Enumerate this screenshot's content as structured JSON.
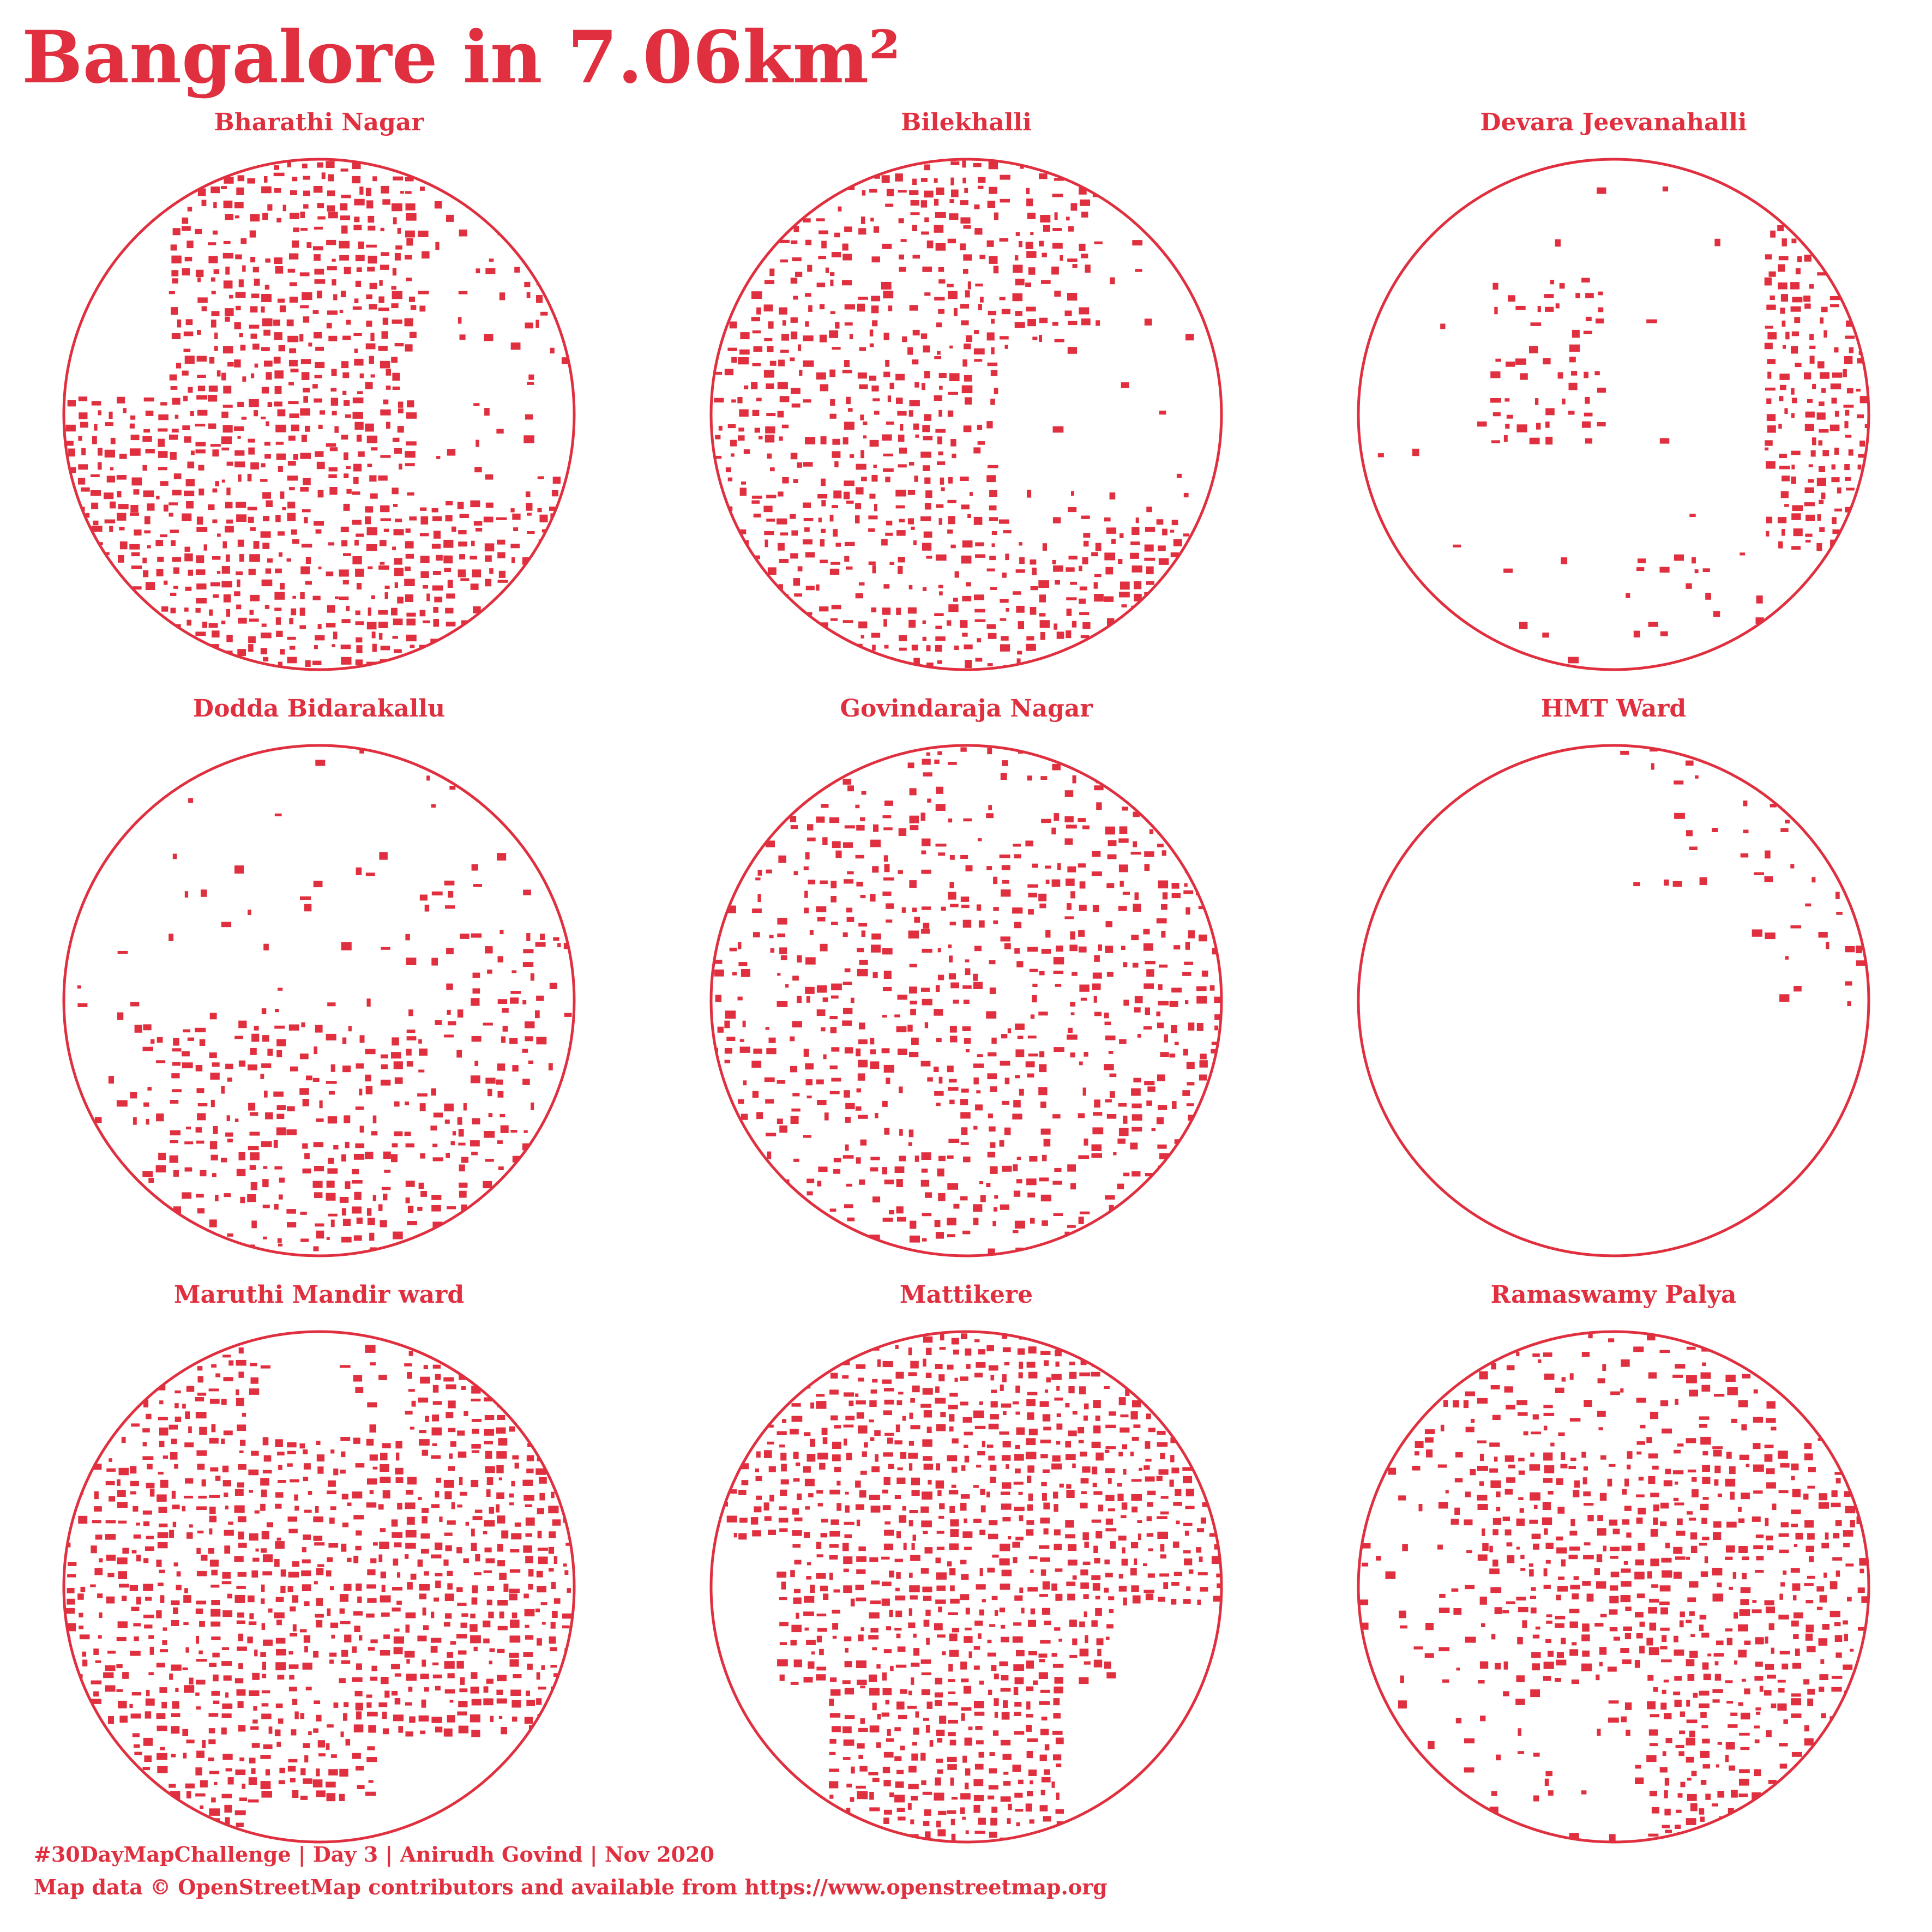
{
  "title": "Bangalore in 7.06km²",
  "accent_color": "#e0303f",
  "background_color": "#ffffff",
  "panels": [
    {
      "name": "Bharathi Nagar",
      "seed": 11,
      "pattern": "bharathi"
    },
    {
      "name": "Bilekhalli",
      "seed": 23,
      "pattern": "bilekhalli"
    },
    {
      "name": "Devara Jeevanahalli",
      "seed": 37,
      "pattern": "devara"
    },
    {
      "name": "Dodda Bidarakallu",
      "seed": 41,
      "pattern": "dodda"
    },
    {
      "name": "Govindaraja Nagar",
      "seed": 53,
      "pattern": "govindaraja"
    },
    {
      "name": "HMT Ward",
      "seed": 67,
      "pattern": "hmt"
    },
    {
      "name": "Maruthi Mandir ward",
      "seed": 71,
      "pattern": "maruthi"
    },
    {
      "name": "Mattikere",
      "seed": 83,
      "pattern": "mattikere"
    },
    {
      "name": "Ramaswamy Palya",
      "seed": 97,
      "pattern": "ramaswamy"
    }
  ],
  "footer": {
    "line1": "#30DayMapChallenge | Day 3 | Anirudh Govind | Nov 2020",
    "line2": "Map data © OpenStreetMap contributors and available from https://www.openstreetmap.org"
  }
}
